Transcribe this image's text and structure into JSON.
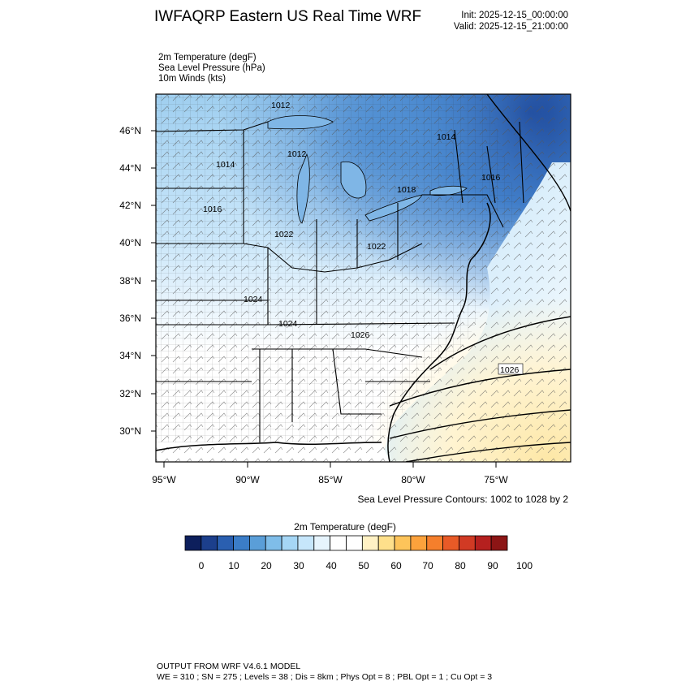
{
  "header": {
    "title": "IWFAQRP Eastern US Real Time WRF",
    "init": "Init: 2025-12-15_00:00:00",
    "valid": "Valid: 2025-12-15_21:00:00"
  },
  "fields": {
    "line1": "2m Temperature   (degF)",
    "line2": "Sea Level Pressure   (hPa)",
    "line3": "10m Winds   (kts)"
  },
  "map": {
    "lat_labels": [
      "46°N",
      "44°N",
      "42°N",
      "40°N",
      "38°N",
      "36°N",
      "34°N",
      "32°N",
      "30°N"
    ],
    "lon_labels": [
      "95°W",
      "90°W",
      "85°W",
      "80°W",
      "75°W"
    ],
    "pressure_labels": [
      "1012",
      "1014",
      "1012",
      "1014",
      "1016",
      "1018",
      "1016",
      "1022",
      "1022",
      "1024",
      "1024",
      "1026",
      "1026"
    ],
    "contour_note": "Sea Level Pressure Contours: 1002 to 1028 by 2"
  },
  "colorbar": {
    "title": "2m Temperature  (degF)",
    "tick_labels": [
      "0",
      "10",
      "20",
      "30",
      "40",
      "50",
      "60",
      "70",
      "80",
      "90",
      "100"
    ],
    "colors": [
      "#0d1f5c",
      "#1c3f8c",
      "#2a5fb0",
      "#3b7dc8",
      "#5a9ed8",
      "#7fbde9",
      "#a5d6f5",
      "#c6e6fb",
      "#e6f4fd",
      "#ffffff",
      "#ffffff",
      "#fff1c4",
      "#fee08b",
      "#fdc45a",
      "#fca23c",
      "#f57f2c",
      "#e85a27",
      "#d13a24",
      "#b5201f",
      "#8c1515"
    ]
  },
  "footer": {
    "line1": "OUTPUT FROM WRF V4.6.1 MODEL",
    "line2": "WE = 310 ; SN = 275 ; Levels = 38 ; Dis = 8km ; Phys Opt = 8 ; PBL Opt = 1 ; Cu Opt = 3"
  }
}
